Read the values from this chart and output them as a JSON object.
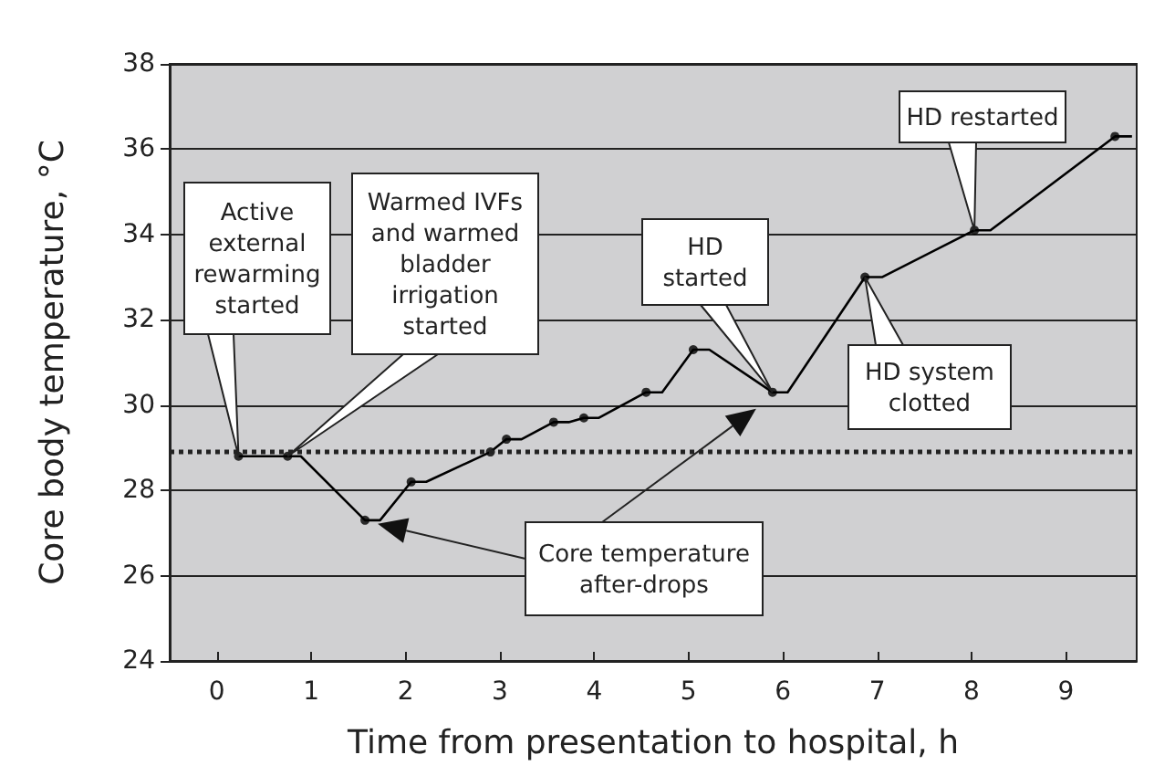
{
  "chart_data": {
    "type": "line",
    "xlabel": "Time from presentation to hospital, h",
    "ylabel": "Core body temperature, °C",
    "xlim": [
      -0.5,
      9.75
    ],
    "xticks": [
      0,
      1,
      2,
      3,
      4,
      5,
      6,
      7,
      8,
      9
    ],
    "ylim": [
      24,
      38
    ],
    "yticks": [
      24,
      26,
      28,
      30,
      32,
      34,
      36,
      38
    ],
    "grid": "y",
    "series": [
      {
        "type": "line",
        "color": "#000000",
        "marker": "none",
        "x": [
          0.23,
          0.75,
          0.89,
          1.57,
          1.73,
          2.06,
          2.22,
          2.9,
          3.07,
          3.23,
          3.57,
          3.73,
          3.89,
          4.05,
          4.55,
          4.72,
          5.05,
          5.22,
          5.89,
          6.05,
          6.87,
          7.05,
          8.03,
          8.2,
          9.52,
          9.7
        ],
        "values": [
          28.8,
          28.8,
          28.8,
          27.3,
          27.3,
          28.2,
          28.2,
          28.9,
          29.2,
          29.2,
          29.6,
          29.6,
          29.7,
          29.7,
          30.3,
          30.3,
          31.3,
          31.3,
          30.3,
          30.3,
          33.0,
          33.0,
          34.1,
          34.1,
          36.3,
          36.3
        ]
      },
      {
        "type": "scatter",
        "color": "#000000",
        "marker": "circle",
        "x": [
          0.23,
          0.75,
          1.57,
          2.06,
          2.9,
          3.07,
          3.57,
          3.89,
          4.55,
          5.05,
          5.89,
          6.87,
          8.03,
          9.52
        ],
        "values": [
          28.8,
          28.8,
          27.3,
          28.2,
          28.9,
          29.2,
          29.6,
          29.7,
          30.3,
          31.3,
          30.3,
          33.0,
          34.1,
          36.3
        ]
      }
    ],
    "ref_lines": [
      {
        "axis": "y",
        "value": 28.9,
        "color": "#222222",
        "line_style": "dotted"
      }
    ],
    "annotations": [
      "Active external rewarming started",
      "Warmed IVFs and warmed bladder irrigation started",
      "HD started",
      "HD system clotted",
      "HD restarted",
      "Core temperature after-drops"
    ]
  }
}
